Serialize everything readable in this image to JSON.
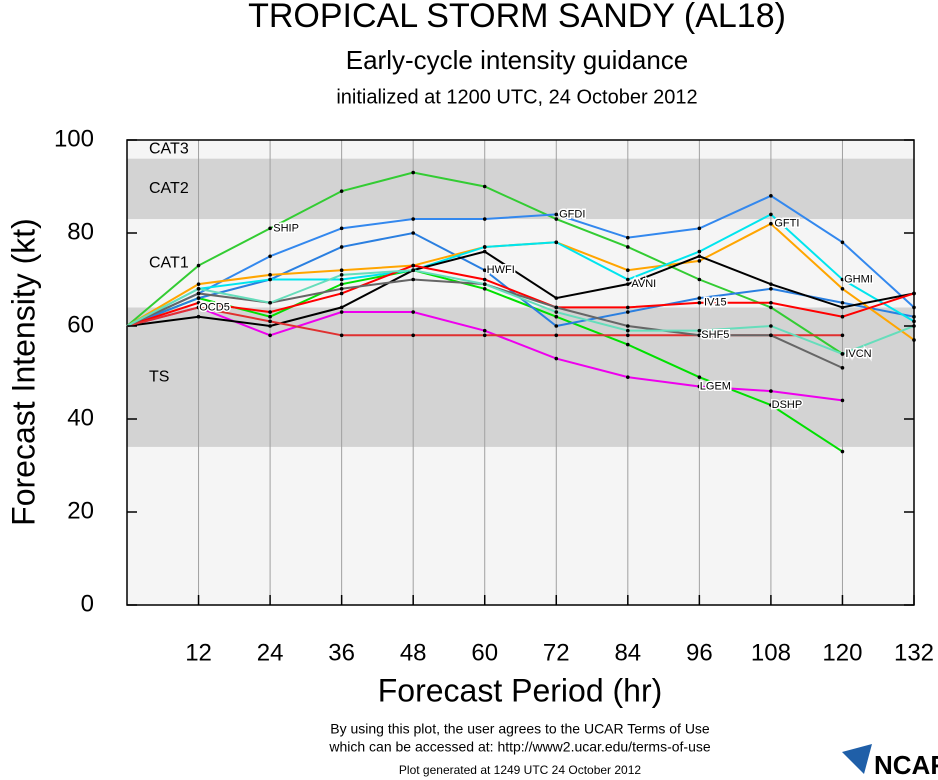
{
  "chart_data": {
    "type": "line",
    "title": "TROPICAL STORM SANDY (AL18)",
    "subtitle": "Early-cycle intensity guidance",
    "initialized": "initialized at 1200 UTC, 24 October 2012",
    "x_label": "Forecast Period (hr)",
    "y_label": "Forecast Intensity (kt)",
    "x": [
      0,
      12,
      24,
      36,
      48,
      60,
      72,
      84,
      96,
      108,
      120,
      132
    ],
    "xlim": [
      0,
      132
    ],
    "xticks": [
      12,
      24,
      36,
      48,
      60,
      72,
      84,
      96,
      108,
      120,
      132
    ],
    "ylim": [
      0,
      100
    ],
    "yticks": [
      0,
      20,
      40,
      60,
      80,
      100
    ],
    "grid": true,
    "bands": [
      {
        "name": "TS",
        "from": 34,
        "to": 64,
        "color": "#d3d3d3"
      },
      {
        "name": "CAT1",
        "from": 64,
        "to": 83,
        "color": "#f5f5f5"
      },
      {
        "name": "CAT2",
        "from": 83,
        "to": 96,
        "color": "#d3d3d3"
      },
      {
        "name": "CAT3",
        "from": 96,
        "to": 100,
        "color": "#f5f5f5"
      }
    ],
    "series": [
      {
        "name": "SHIP",
        "color": "#33cc33",
        "values": [
          60,
          73,
          81,
          89,
          93,
          90,
          83,
          77,
          70,
          64,
          54,
          null
        ]
      },
      {
        "name": "DSHP",
        "color": "#00e000",
        "values": [
          60,
          66,
          62,
          69,
          72,
          68,
          62,
          56,
          49,
          43,
          33,
          null
        ]
      },
      {
        "name": "LGEM",
        "color": "#ee00ee",
        "values": [
          60,
          64,
          58,
          63,
          63,
          59,
          53,
          49,
          47,
          46,
          44,
          null
        ]
      },
      {
        "name": "GFDI",
        "color": "#3388ee",
        "values": [
          60,
          67,
          75,
          81,
          83,
          83,
          84,
          79,
          81,
          88,
          78,
          64
        ]
      },
      {
        "name": "HWFI",
        "color": "#2a7fe0",
        "values": [
          60,
          66,
          70,
          77,
          80,
          72,
          60,
          63,
          66,
          68,
          65,
          62
        ]
      },
      {
        "name": "GFTI",
        "color": "#ffa500",
        "values": [
          60,
          69,
          71,
          72,
          73,
          77,
          78,
          72,
          74,
          82,
          68,
          57
        ]
      },
      {
        "name": "GHMI",
        "color": "#00e5ee",
        "values": [
          60,
          68,
          70,
          70,
          72,
          77,
          78,
          70,
          76,
          84,
          70,
          61
        ]
      },
      {
        "name": "AVNI",
        "color": "#000000",
        "values": [
          60,
          62,
          60,
          64,
          72,
          76,
          66,
          69,
          75,
          69,
          64,
          67
        ]
      },
      {
        "name": "IV15",
        "color": "#ff0000",
        "values": [
          60,
          65,
          63,
          67,
          73,
          70,
          64,
          64,
          65,
          65,
          62,
          67
        ]
      },
      {
        "name": "OCD5",
        "color": "#e03030",
        "values": [
          60,
          64,
          61,
          58,
          58,
          58,
          58,
          58,
          58,
          58,
          58,
          null
        ]
      },
      {
        "name": "SHF5",
        "color": "#666666",
        "values": [
          60,
          67,
          65,
          68,
          70,
          69,
          64,
          60,
          58,
          58,
          51,
          null
        ]
      },
      {
        "name": "IVCN",
        "color": "#66ddbb",
        "values": [
          60,
          68,
          65,
          71,
          72,
          69,
          63,
          59,
          59,
          60,
          54,
          60
        ]
      }
    ]
  },
  "footer": {
    "terms": "By using this plot, the user agrees to the UCAR Terms of Use",
    "url": "which can be accessed at: http://www2.ucar.edu/terms-of-use",
    "generated": "Plot generated at 1249 UTC  24 October 2012",
    "logo": "NCAR"
  }
}
